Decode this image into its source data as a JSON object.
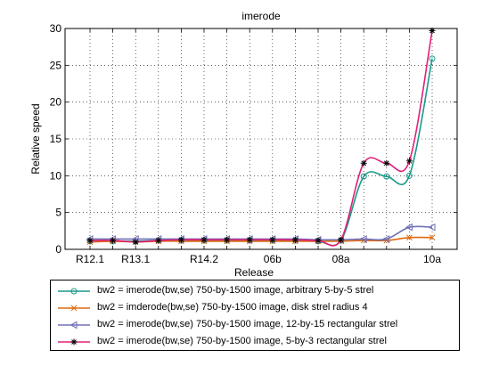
{
  "chart_data": {
    "type": "line",
    "title": "imerode",
    "xlabel": "Release",
    "ylabel": "Relative speed",
    "ylim": [
      0,
      30
    ],
    "yticks": [
      0,
      5,
      10,
      15,
      20,
      25,
      30
    ],
    "xtick_labels": [
      "R12.1",
      "R13.1",
      "R14.2",
      "06b",
      "08a",
      "10a"
    ],
    "grid": true,
    "legend_position": "below-plot",
    "categories": [
      "R12.1",
      "",
      "R13.1",
      "",
      "",
      "R14.2",
      "",
      "",
      "06b",
      "",
      "",
      "08a",
      "",
      "",
      "",
      "10a"
    ],
    "series": [
      {
        "name": "bw2 = imerode(bw,se)  750-by-1500 image, arbitrary 5-by-5 strel",
        "color": "#1a9a8a",
        "marker": "circle",
        "values": [
          1.1,
          1.1,
          1.1,
          1.2,
          1.2,
          1.2,
          1.2,
          1.2,
          1.2,
          1.2,
          1.1,
          1.2,
          9.9,
          9.9,
          10.0,
          25.9
        ]
      },
      {
        "name": "bw2 = imderode(bw,se)  750-by-1500 image, disk strel radius 4",
        "color": "#e06a10",
        "marker": "x",
        "values": [
          1.0,
          1.1,
          1.0,
          1.1,
          1.1,
          1.1,
          1.1,
          1.1,
          1.1,
          1.1,
          1.1,
          1.1,
          1.2,
          1.2,
          1.6,
          1.6
        ]
      },
      {
        "name": "bw2 = imerode(bw,se)  750-by-1500 image, 12-by-15 rectangular strel",
        "color": "#7070b8",
        "marker": "triangle-left",
        "values": [
          1.4,
          1.4,
          1.4,
          1.4,
          1.4,
          1.4,
          1.4,
          1.4,
          1.4,
          1.4,
          1.3,
          1.3,
          1.4,
          1.4,
          3.0,
          3.0
        ]
      },
      {
        "name": "bw2 = imerode(bw,se)  750-by-1500 image, 5-by-3 rectangular strel",
        "color": "#e0207a",
        "marker": "star",
        "values": [
          1.2,
          1.2,
          1.0,
          1.2,
          1.3,
          1.3,
          1.3,
          1.3,
          1.3,
          1.3,
          1.2,
          1.3,
          11.7,
          11.7,
          12.0,
          29.7
        ]
      }
    ]
  }
}
